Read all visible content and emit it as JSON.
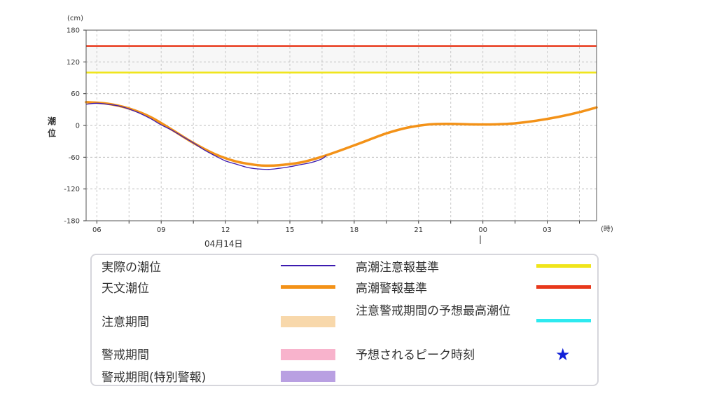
{
  "chart_data": {
    "type": "line",
    "y_unit_label": "(cm)",
    "ylabel": "潮位",
    "x_unit_label": "(時)",
    "date_label": "04月14日",
    "ylim": [
      -180,
      180
    ],
    "yticks": [
      180,
      120,
      60,
      0,
      -60,
      -120,
      -180
    ],
    "x_range_hours": [
      5.5,
      29.3
    ],
    "xticks": [
      {
        "hour": 6,
        "label": "06"
      },
      {
        "hour": 9,
        "label": "09"
      },
      {
        "hour": 12,
        "label": "12"
      },
      {
        "hour": 15,
        "label": "15"
      },
      {
        "hour": 18,
        "label": "18"
      },
      {
        "hour": 21,
        "label": "21"
      },
      {
        "hour": 24,
        "label": "00"
      },
      {
        "hour": 27,
        "label": "03"
      }
    ],
    "grid": true,
    "thresholds": [
      {
        "name": "高潮警報基準",
        "value": 150,
        "color": "#e8381b"
      },
      {
        "name": "高潮注意報基準",
        "value": 100,
        "color": "#f0e51a"
      }
    ],
    "series": [
      {
        "name": "天文潮位",
        "color": "#f39218",
        "x": [
          5.5,
          6.5,
          7.5,
          8.5,
          9.5,
          10.5,
          11.5,
          12.5,
          13.5,
          14.0,
          14.5,
          15.5,
          16.5,
          17.5,
          18.5,
          19.5,
          20.5,
          21.5,
          22.5,
          23.5,
          24.5,
          25.5,
          26.5,
          27.5,
          28.5,
          29.3
        ],
        "values": [
          44,
          41,
          32,
          16,
          -8,
          -33,
          -54,
          -68,
          -75,
          -76,
          -75,
          -70,
          -59,
          -45,
          -30,
          -15,
          -4,
          2,
          3,
          2,
          2,
          4,
          9,
          16,
          25,
          34
        ]
      },
      {
        "name": "実際の潮位",
        "color": "#3c1bb0",
        "x": [
          5.5,
          6.0,
          6.5,
          7.0,
          7.5,
          8.0,
          8.5,
          9.0,
          9.5,
          10.0,
          10.5,
          11.0,
          11.5,
          12.0,
          12.5,
          13.0,
          13.5,
          14.0,
          14.5,
          15.0,
          15.5,
          16.0,
          16.5,
          16.7
        ],
        "values": [
          40,
          42,
          40,
          37,
          31,
          23,
          13,
          1,
          -9,
          -21,
          -33,
          -46,
          -57,
          -67,
          -73,
          -79,
          -82,
          -83,
          -81,
          -78,
          -74,
          -70,
          -63,
          -57
        ]
      }
    ]
  },
  "legend": [
    {
      "label": "実際の潮位",
      "kind": "line",
      "color": "#3c1bb0"
    },
    {
      "label": "天文潮位",
      "kind": "thick-line",
      "color": "#f39218"
    },
    {
      "label": "注意期間",
      "kind": "band",
      "color": "#f8d8ab"
    },
    {
      "label": "警戒期間",
      "kind": "band",
      "color": "#f8b3cc"
    },
    {
      "label": "警戒期間(特別警報)",
      "kind": "band",
      "color": "#b9a0e2"
    },
    {
      "label": "高潮注意報基準",
      "kind": "thick-line",
      "color": "#f0e51a"
    },
    {
      "label": "高潮警報基準",
      "kind": "thick-line",
      "color": "#e8381b"
    },
    {
      "label": "注意警戒期間の予想最高潮位",
      "kind": "thick-line",
      "color": "#2eeaf0"
    },
    {
      "label": "予想されるピーク時刻",
      "kind": "star",
      "color": "#1020d8",
      "icon": "star-icon"
    }
  ]
}
